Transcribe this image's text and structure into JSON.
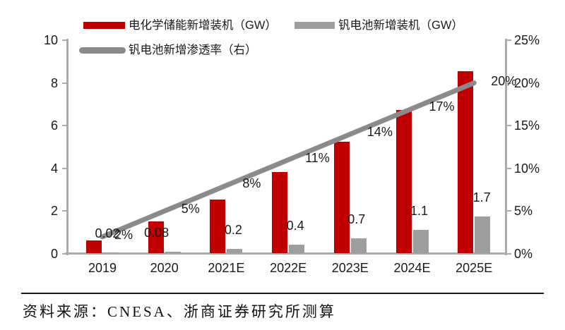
{
  "legend": {
    "items": [
      {
        "label": "电化学储能新增装机（GW）",
        "swatch": "bar",
        "color": "#C00000"
      },
      {
        "label": "钒电池新增装机（GW）",
        "swatch": "bar",
        "color": "#9E9E9E"
      },
      {
        "label": "钒电池新增渗透率（右）",
        "swatch": "line",
        "color": "#8A8A8A"
      }
    ]
  },
  "chart_data": {
    "type": "bar+line combo",
    "categories": [
      "2019",
      "2020",
      "2021E",
      "2022E",
      "2023E",
      "2024E",
      "2025E"
    ],
    "series": [
      {
        "name": "电化学储能新增装机（GW）",
        "type": "bar",
        "axis": "left",
        "color": "#C00000",
        "values": [
          0.6,
          1.5,
          2.5,
          3.8,
          5.2,
          6.7,
          8.5
        ]
      },
      {
        "name": "钒电池新增装机（GW）",
        "type": "bar",
        "axis": "left",
        "color": "#9E9E9E",
        "values": [
          0.02,
          0.08,
          0.2,
          0.4,
          0.7,
          1.1,
          1.7
        ],
        "labels": [
          "0.02",
          "0.08",
          "0.2",
          "0.4",
          "0.7",
          "1.1",
          "1.7"
        ]
      },
      {
        "name": "钒电池新增渗透率（右）",
        "type": "line",
        "axis": "right",
        "color": "#8A8A8A",
        "values": [
          2,
          5,
          8,
          11,
          14,
          17,
          20
        ],
        "labels": [
          "2%",
          "5%",
          "8%",
          "11%",
          "14%",
          "17%",
          "20%"
        ]
      }
    ],
    "left_axis": {
      "min": 0,
      "max": 10,
      "tick_labels": [
        "0",
        "2",
        "4",
        "6",
        "8",
        "10"
      ]
    },
    "right_axis": {
      "min": 0,
      "max": 25,
      "tick_labels": [
        "0%",
        "5%",
        "10%",
        "15%",
        "20%",
        "25%"
      ]
    },
    "grid": false,
    "legend_position": "top-left",
    "title": ""
  },
  "colors": {
    "red_bar": "#C00000",
    "gray_bar": "#9E9E9E",
    "line": "#8A8A8A",
    "axis": "#ABABAB",
    "text": "#1A1A1A"
  },
  "source_note": "资料来源：CNESA、浙商证券研究所测算"
}
